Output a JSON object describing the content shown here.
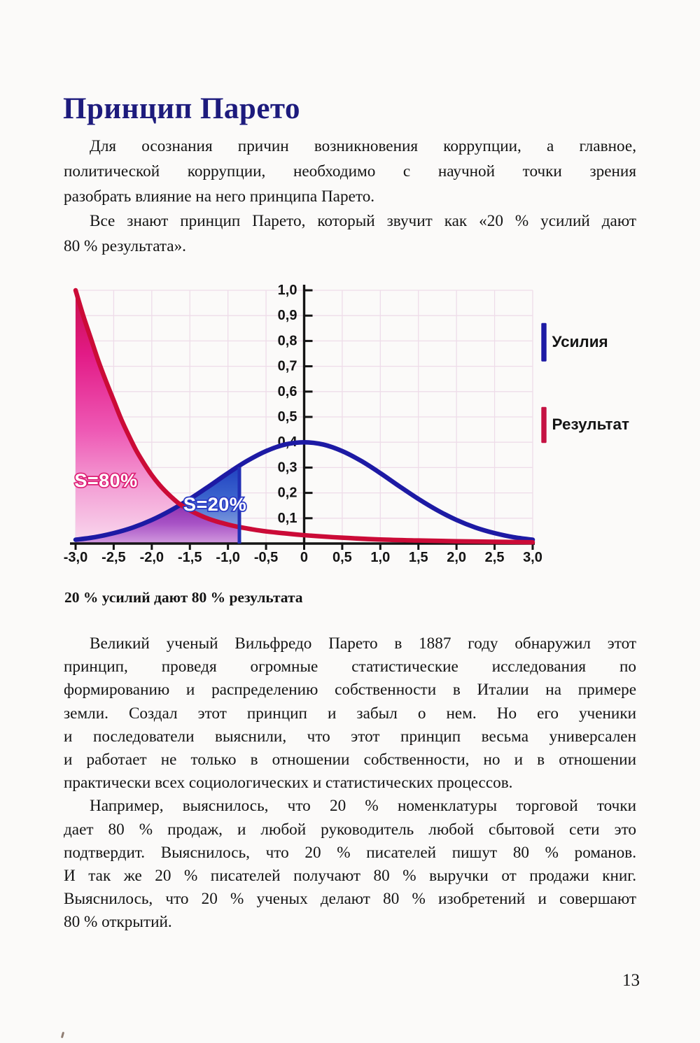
{
  "page": {
    "title": "Принцип Парето",
    "paragraphs_top": [
      {
        "lines": [
          "Для осознания причин возникновения коррупции, а главное,",
          "политической коррупции, необходимо с научной точки зрения",
          "разобрать влияние на него принципа Парето."
        ]
      },
      {
        "lines": [
          "Все знают принцип Парето, который звучит как «20 % усилий дают",
          "80 % результата»."
        ]
      }
    ],
    "figure_caption": "20 % усилий дают 80 % результата",
    "paragraphs_bottom": [
      {
        "lines": [
          "Великий ученый Вильфредо Парето в 1887 году обнаружил этот",
          "принцип, проведя огромные статистические исследования по",
          "формированию и распределению собственности в Италии на примере",
          "земли. Создал этот принцип и забыл о нем. Но его ученики",
          "и последователи выяснили, что этот принцип весьма универсален",
          "и работает не только в отношении собственности, но и в отношении",
          "практически всех социологических и статистических процессов."
        ]
      },
      {
        "lines": [
          "Например, выяснилось, что 20 % номенклатуры торговой точки",
          "дает 80 % продаж, и любой руководитель любой сбытовой сети это",
          "подтвердит. Выяснилось, что 20 % писателей пишут 80 % романов.",
          "И так же 20 % писателей получают 80 % выручки от продажи книг.",
          "Выяснилось, что 20 % ученых делают 80 % изобретений и совершают",
          "80 % открытий."
        ]
      }
    ],
    "page_number": "13"
  },
  "chart_data": {
    "type": "line",
    "title": "",
    "xlabel": "",
    "ylabel": "",
    "xlim": [
      -3,
      3
    ],
    "ylim": [
      0,
      1
    ],
    "grid": true,
    "xticks": [
      "-3,0",
      "-2,5",
      "-2,0",
      "-1,5",
      "-1,0",
      "-0,5",
      "0",
      "0,5",
      "1,0",
      "1,5",
      "2,0",
      "2,5",
      "3,0"
    ],
    "xtick_values": [
      -3,
      -2.5,
      -2,
      -1.5,
      -1,
      -0.5,
      0,
      0.5,
      1,
      1.5,
      2,
      2.5,
      3
    ],
    "yticks": [
      "0,1",
      "0,2",
      "0,3",
      "0,4",
      "0,5",
      "0,6",
      "0,7",
      "0,8",
      "0,9",
      "1,0"
    ],
    "ytick_values": [
      0.1,
      0.2,
      0.3,
      0.4,
      0.5,
      0.6,
      0.7,
      0.8,
      0.9,
      1.0
    ],
    "series": [
      {
        "name": "Усилия",
        "color": "#1d1aa4",
        "points": [
          [
            -3,
            0.015
          ],
          [
            -2.75,
            0.025
          ],
          [
            -2.5,
            0.041
          ],
          [
            -2.25,
            0.063
          ],
          [
            -2,
            0.093
          ],
          [
            -1.75,
            0.131
          ],
          [
            -1.5,
            0.176
          ],
          [
            -1.25,
            0.226
          ],
          [
            -1,
            0.278
          ],
          [
            -0.75,
            0.326
          ],
          [
            -0.5,
            0.365
          ],
          [
            -0.25,
            0.391
          ],
          [
            0,
            0.4
          ],
          [
            0.25,
            0.391
          ],
          [
            0.5,
            0.365
          ],
          [
            0.75,
            0.326
          ],
          [
            1,
            0.278
          ],
          [
            1.25,
            0.226
          ],
          [
            1.5,
            0.176
          ],
          [
            1.75,
            0.131
          ],
          [
            2,
            0.093
          ],
          [
            2.25,
            0.063
          ],
          [
            2.5,
            0.041
          ],
          [
            2.75,
            0.025
          ],
          [
            3,
            0.015
          ]
        ]
      },
      {
        "name": "Результат",
        "color": "#cb0b37",
        "points": [
          [
            -3,
            1.0
          ],
          [
            -2.9,
            0.9
          ],
          [
            -2.8,
            0.81
          ],
          [
            -2.7,
            0.72
          ],
          [
            -2.6,
            0.64
          ],
          [
            -2.5,
            0.565
          ],
          [
            -2.4,
            0.49
          ],
          [
            -2.3,
            0.425
          ],
          [
            -2.2,
            0.365
          ],
          [
            -2.1,
            0.315
          ],
          [
            -2,
            0.27
          ],
          [
            -1.9,
            0.232
          ],
          [
            -1.8,
            0.2
          ],
          [
            -1.7,
            0.172
          ],
          [
            -1.62,
            0.153
          ],
          [
            -1.5,
            0.131
          ],
          [
            -1.4,
            0.116
          ],
          [
            -1.3,
            0.103
          ],
          [
            -1.2,
            0.092
          ],
          [
            -1.1,
            0.083
          ],
          [
            -1,
            0.075
          ],
          [
            -0.85,
            0.065
          ],
          [
            -0.7,
            0.057
          ],
          [
            -0.5,
            0.048
          ],
          [
            -0.25,
            0.04
          ],
          [
            0,
            0.033
          ],
          [
            0.5,
            0.023
          ],
          [
            1,
            0.016
          ],
          [
            1.5,
            0.012
          ],
          [
            2,
            0.009
          ],
          [
            2.5,
            0.007
          ],
          [
            3,
            0.005
          ]
        ]
      }
    ],
    "shading": {
      "boundary_x": -0.85,
      "crossing_x": -1.62,
      "areas": [
        {
          "label": "S=80%",
          "under": "Результат",
          "label_pos": [
            -2.6,
            0.249
          ],
          "outline": "#dd2277"
        },
        {
          "label": "S=20%",
          "under": "Усилия",
          "label_pos": [
            -1.17,
            0.155
          ],
          "outline": "#2b3bc4"
        }
      ]
    },
    "legend": [
      {
        "label": "Усилия",
        "color": "#1d1aa4"
      },
      {
        "label": "Результат",
        "color": "#c51243"
      }
    ]
  }
}
